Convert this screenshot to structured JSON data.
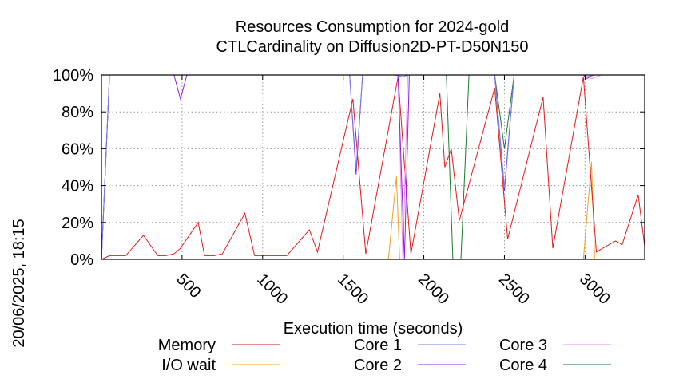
{
  "chart_data": {
    "type": "line",
    "title": [
      "Resources Consumption for 2024-gold",
      "CTLCardinality on Diffusion2D-PT-D50N150"
    ],
    "xlabel": "Execution time (seconds)",
    "ylabel": "",
    "side_label": "20/06/2025, 18:15",
    "xlim": [
      0,
      3370
    ],
    "ylim": [
      0,
      100
    ],
    "xticks": [
      500,
      1000,
      1500,
      2000,
      2500,
      3000
    ],
    "xtick_labels": [
      "500",
      "1000",
      "1500",
      "2000",
      "2500",
      "3000"
    ],
    "yticks": [
      0,
      20,
      40,
      60,
      80,
      100
    ],
    "ytick_labels": [
      "0%",
      "20%",
      "40%",
      "60%",
      "80%",
      "100%"
    ],
    "grid": true,
    "legend_position": "bottom",
    "series": [
      {
        "name": "Memory",
        "color": "#e31a1c",
        "x": [
          0,
          50,
          150,
          260,
          350,
          400,
          450,
          490,
          600,
          640,
          700,
          750,
          890,
          950,
          1000,
          1090,
          1150,
          1290,
          1340,
          1560,
          1640,
          1840,
          1920,
          2100,
          2130,
          2170,
          2220,
          2440,
          2520,
          2740,
          2800,
          2990,
          3070,
          3110,
          3190,
          3230,
          3330,
          3370
        ],
        "y": [
          0,
          2,
          2,
          13,
          2,
          2,
          3,
          6,
          20,
          2,
          2,
          3,
          25,
          2,
          2,
          2,
          2,
          16,
          4,
          87,
          3,
          99,
          3,
          90,
          50,
          60,
          21,
          93,
          11,
          88,
          6,
          99,
          4,
          6,
          10,
          8,
          35,
          7
        ]
      },
      {
        "name": "I/O wait",
        "color": "#f0a020",
        "x": [
          0,
          1780,
          1830,
          1850,
          2990,
          3040,
          3060,
          3370
        ],
        "y": [
          0,
          0,
          45,
          0,
          0,
          53,
          0,
          0
        ]
      },
      {
        "name": "Core 1",
        "color": "#6e80e6",
        "x": [
          0,
          50,
          1540,
          1580,
          1620,
          1820,
          1870,
          1900,
          1920,
          1940,
          2440,
          2500,
          2560,
          2990,
          3010,
          3060,
          3370
        ],
        "y": [
          0,
          100,
          100,
          49,
          100,
          100,
          99,
          100,
          100,
          100,
          100,
          39,
          100,
          100,
          99,
          100,
          100
        ]
      },
      {
        "name": "Core 2",
        "color": "#9020e0",
        "x": [
          0,
          50,
          450,
          490,
          530,
          1540,
          1580,
          1620,
          1840,
          1880,
          1910,
          1940,
          2440,
          2500,
          2560,
          2990,
          3010,
          3050,
          3100,
          3370
        ],
        "y": [
          0,
          100,
          100,
          87,
          100,
          100,
          46,
          100,
          100,
          0,
          100,
          100,
          100,
          37,
          100,
          100,
          98,
          100,
          100,
          100
        ]
      },
      {
        "name": "Core 3",
        "color": "#ee88f0",
        "x": [
          0,
          50,
          1840,
          1870,
          1900,
          1930,
          2200,
          2220,
          2240,
          2990,
          3040,
          3100,
          3370
        ],
        "y": [
          0,
          100,
          100,
          0,
          100,
          100,
          100,
          100,
          100,
          100,
          98,
          100,
          100
        ]
      },
      {
        "name": "Core 4",
        "color": "#1e7a30",
        "x": [
          0,
          50,
          2140,
          2180,
          2230,
          2280,
          2440,
          2500,
          2560,
          3370
        ],
        "y": [
          0,
          100,
          100,
          0,
          0,
          100,
          100,
          60,
          100,
          100
        ]
      }
    ]
  }
}
